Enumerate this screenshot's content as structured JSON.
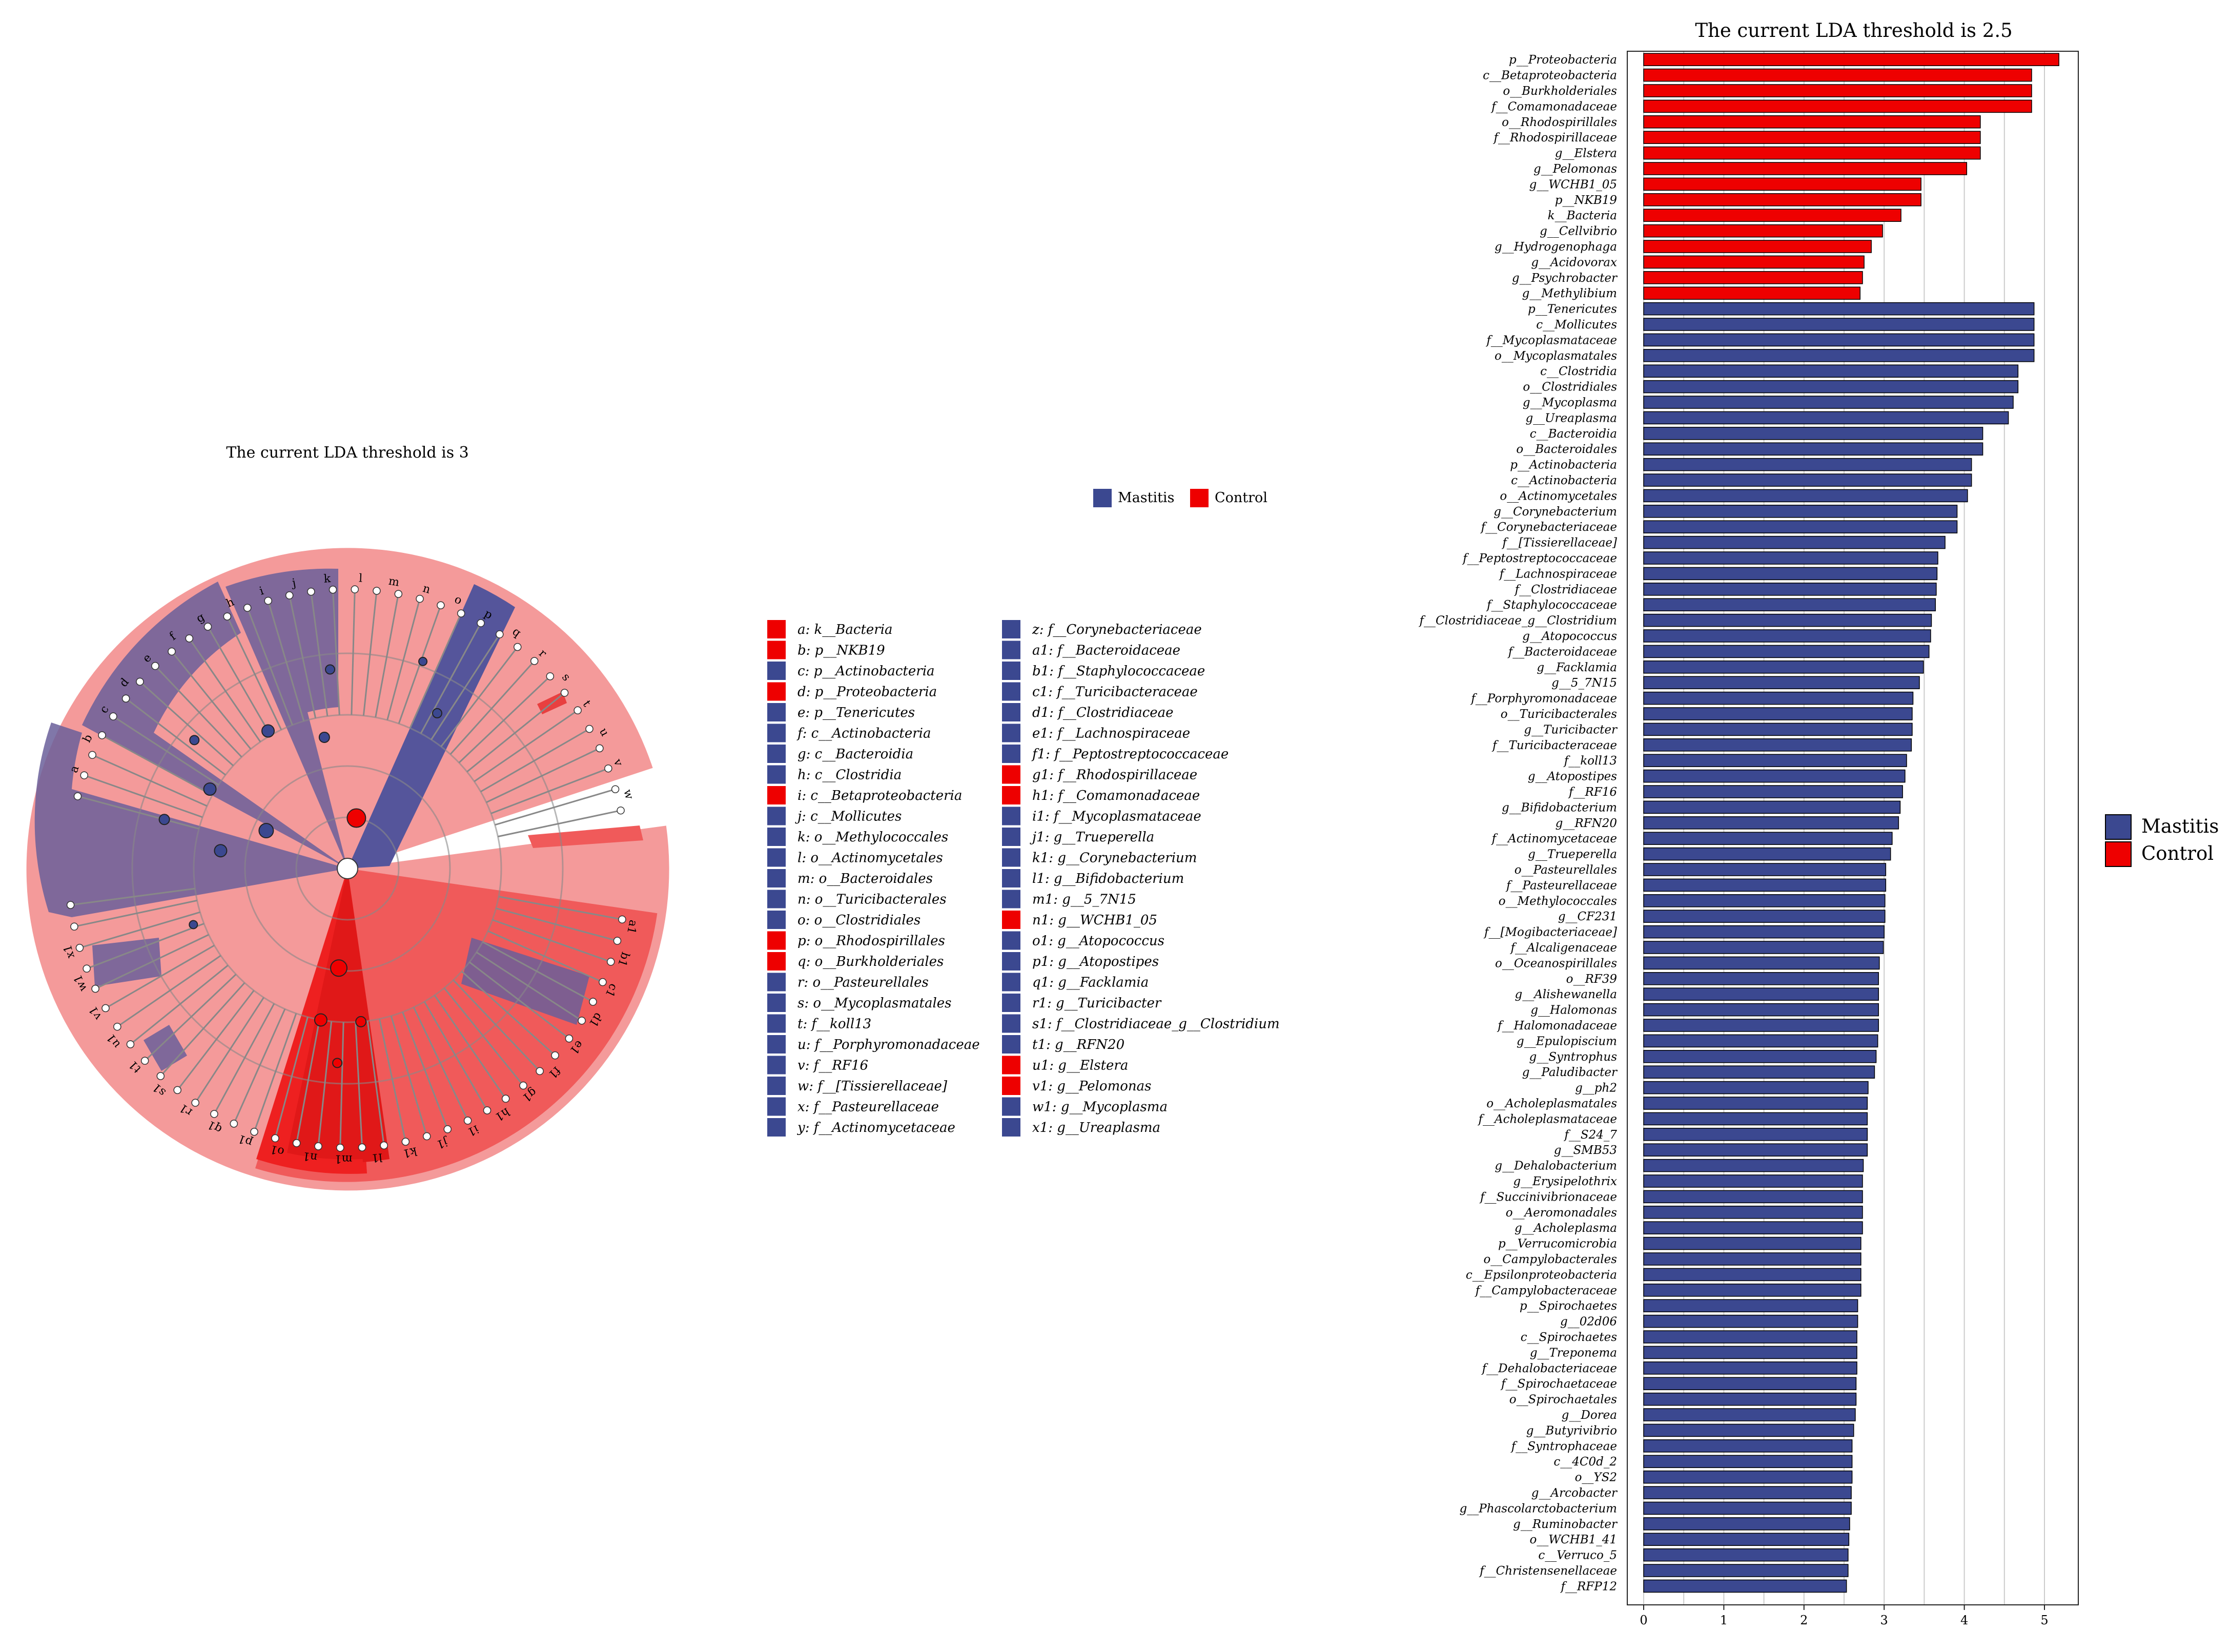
{
  "chart_data": [
    {
      "type": "cladogram",
      "title": "The current LDA threshold is 3",
      "legend": [
        {
          "label": "Mastitis",
          "color": "#3b4890"
        },
        {
          "label": "Control",
          "color": "#ee0000"
        }
      ],
      "node_labels_left": [
        {
          "key": "a",
          "taxon": "k__Bacteria",
          "group": "Control"
        },
        {
          "key": "b",
          "taxon": "p__NKB19",
          "group": "Control"
        },
        {
          "key": "c",
          "taxon": "p__Actinobacteria",
          "group": "Mastitis"
        },
        {
          "key": "d",
          "taxon": "p__Proteobacteria",
          "group": "Control"
        },
        {
          "key": "e",
          "taxon": "p__Tenericutes",
          "group": "Mastitis"
        },
        {
          "key": "f",
          "taxon": "c__Actinobacteria",
          "group": "Mastitis"
        },
        {
          "key": "g",
          "taxon": "c__Bacteroidia",
          "group": "Mastitis"
        },
        {
          "key": "h",
          "taxon": "c__Clostridia",
          "group": "Mastitis"
        },
        {
          "key": "i",
          "taxon": "c__Betaproteobacteria",
          "group": "Control"
        },
        {
          "key": "j",
          "taxon": "c__Mollicutes",
          "group": "Mastitis"
        },
        {
          "key": "k",
          "taxon": "o__Methylococcales",
          "group": "Mastitis"
        },
        {
          "key": "l",
          "taxon": "o__Actinomycetales",
          "group": "Mastitis"
        },
        {
          "key": "m",
          "taxon": "o__Bacteroidales",
          "group": "Mastitis"
        },
        {
          "key": "n",
          "taxon": "o__Turicibacterales",
          "group": "Mastitis"
        },
        {
          "key": "o",
          "taxon": "o__Clostridiales",
          "group": "Mastitis"
        },
        {
          "key": "p",
          "taxon": "o__Rhodospirillales",
          "group": "Control"
        },
        {
          "key": "q",
          "taxon": "o__Burkholderiales",
          "group": "Control"
        },
        {
          "key": "r",
          "taxon": "o__Pasteurellales",
          "group": "Mastitis"
        },
        {
          "key": "s",
          "taxon": "o__Mycoplasmatales",
          "group": "Mastitis"
        },
        {
          "key": "t",
          "taxon": "f__koll13",
          "group": "Mastitis"
        },
        {
          "key": "u",
          "taxon": "f__Porphyromonadaceae",
          "group": "Mastitis"
        },
        {
          "key": "v",
          "taxon": "f__RF16",
          "group": "Mastitis"
        },
        {
          "key": "w",
          "taxon": "f__[Tissierellaceae]",
          "group": "Mastitis"
        },
        {
          "key": "x",
          "taxon": "f__Pasteurellaceae",
          "group": "Mastitis"
        },
        {
          "key": "y",
          "taxon": "f__Actinomycetaceae",
          "group": "Mastitis"
        }
      ],
      "node_labels_right": [
        {
          "key": "z",
          "taxon": "f__Corynebacteriaceae",
          "group": "Mastitis"
        },
        {
          "key": "a1",
          "taxon": "f__Bacteroidaceae",
          "group": "Mastitis"
        },
        {
          "key": "b1",
          "taxon": "f__Staphylococcaceae",
          "group": "Mastitis"
        },
        {
          "key": "c1",
          "taxon": "f__Turicibacteraceae",
          "group": "Mastitis"
        },
        {
          "key": "d1",
          "taxon": "f__Clostridiaceae",
          "group": "Mastitis"
        },
        {
          "key": "e1",
          "taxon": "f__Lachnospiraceae",
          "group": "Mastitis"
        },
        {
          "key": "f1",
          "taxon": "f__Peptostreptococcaceae",
          "group": "Mastitis"
        },
        {
          "key": "g1",
          "taxon": "f__Rhodospirillaceae",
          "group": "Control"
        },
        {
          "key": "h1",
          "taxon": "f__Comamonadaceae",
          "group": "Control"
        },
        {
          "key": "i1",
          "taxon": "f__Mycoplasmataceae",
          "group": "Mastitis"
        },
        {
          "key": "j1",
          "taxon": "g__Trueperella",
          "group": "Mastitis"
        },
        {
          "key": "k1",
          "taxon": "g__Corynebacterium",
          "group": "Mastitis"
        },
        {
          "key": "l1",
          "taxon": "g__Bifidobacterium",
          "group": "Mastitis"
        },
        {
          "key": "m1",
          "taxon": "g__5_7N15",
          "group": "Mastitis"
        },
        {
          "key": "n1",
          "taxon": "g__WCHB1_05",
          "group": "Control"
        },
        {
          "key": "o1",
          "taxon": "g__Atopococcus",
          "group": "Mastitis"
        },
        {
          "key": "p1",
          "taxon": "g__Atopostipes",
          "group": "Mastitis"
        },
        {
          "key": "q1",
          "taxon": "g__Facklamia",
          "group": "Mastitis"
        },
        {
          "key": "r1",
          "taxon": "g__Turicibacter",
          "group": "Mastitis"
        },
        {
          "key": "s1",
          "taxon": "f__Clostridiaceae_g__Clostridium",
          "group": "Mastitis"
        },
        {
          "key": "t1",
          "taxon": "g__RFN20",
          "group": "Mastitis"
        },
        {
          "key": "u1",
          "taxon": "g__Elstera",
          "group": "Control"
        },
        {
          "key": "v1",
          "taxon": "g__Pelomonas",
          "group": "Control"
        },
        {
          "key": "w1",
          "taxon": "g__Mycoplasma",
          "group": "Mastitis"
        },
        {
          "key": "x1",
          "taxon": "g__Ureaplasma",
          "group": "Mastitis"
        }
      ],
      "sector_letters": [
        "a",
        "b",
        "c",
        "d",
        "e",
        "f",
        "g",
        "h",
        "i",
        "j",
        "k",
        "l",
        "m",
        "n",
        "o",
        "p",
        "q",
        "r",
        "s",
        "t",
        "u",
        "v",
        "w",
        "x",
        "y",
        "z",
        "a1",
        "b1",
        "c1",
        "d1",
        "e1",
        "f1",
        "g1",
        "h1",
        "i1",
        "j1",
        "k1",
        "l1",
        "m1",
        "n1",
        "o1",
        "p1",
        "q1",
        "r1",
        "s1",
        "t1",
        "u1",
        "v1",
        "w1",
        "x1"
      ]
    },
    {
      "type": "bar",
      "orientation": "horizontal",
      "title": "The current LDA threshold is 2.5",
      "xlim": [
        0,
        5.4
      ],
      "xticks": [
        0,
        1,
        2,
        3,
        4,
        5
      ],
      "grid": true,
      "legend": [
        {
          "label": "Mastitis",
          "color": "#3b4890"
        },
        {
          "label": "Control",
          "color": "#ee0000"
        }
      ],
      "legend_position": "right",
      "bars": [
        {
          "label": "p__Proteobacteria",
          "value": 5.18,
          "group": "Control"
        },
        {
          "label": "c__Betaproteobacteria",
          "value": 4.84,
          "group": "Control"
        },
        {
          "label": "o__Burkholderiales",
          "value": 4.84,
          "group": "Control"
        },
        {
          "label": "f__Comamonadaceae",
          "value": 4.84,
          "group": "Control"
        },
        {
          "label": "o__Rhodospirillales",
          "value": 4.2,
          "group": "Control"
        },
        {
          "label": "f__Rhodospirillaceae",
          "value": 4.2,
          "group": "Control"
        },
        {
          "label": "g__Elstera",
          "value": 4.2,
          "group": "Control"
        },
        {
          "label": "g__Pelomonas",
          "value": 4.03,
          "group": "Control"
        },
        {
          "label": "g__WCHB1_05",
          "value": 3.46,
          "group": "Control"
        },
        {
          "label": "p__NKB19",
          "value": 3.46,
          "group": "Control"
        },
        {
          "label": "k__Bacteria",
          "value": 3.21,
          "group": "Control"
        },
        {
          "label": "g__Cellvibrio",
          "value": 2.98,
          "group": "Control"
        },
        {
          "label": "g__Hydrogenophaga",
          "value": 2.84,
          "group": "Control"
        },
        {
          "label": "g__Acidovorax",
          "value": 2.75,
          "group": "Control"
        },
        {
          "label": "g__Psychrobacter",
          "value": 2.73,
          "group": "Control"
        },
        {
          "label": "g__Methylibium",
          "value": 2.7,
          "group": "Control"
        },
        {
          "label": "p__Tenericutes",
          "value": 4.87,
          "group": "Mastitis"
        },
        {
          "label": "c__Mollicutes",
          "value": 4.87,
          "group": "Mastitis"
        },
        {
          "label": "f__Mycoplasmataceae",
          "value": 4.87,
          "group": "Mastitis"
        },
        {
          "label": "o__Mycoplasmatales",
          "value": 4.87,
          "group": "Mastitis"
        },
        {
          "label": "c__Clostridia",
          "value": 4.67,
          "group": "Mastitis"
        },
        {
          "label": "o__Clostridiales",
          "value": 4.67,
          "group": "Mastitis"
        },
        {
          "label": "g__Mycoplasma",
          "value": 4.61,
          "group": "Mastitis"
        },
        {
          "label": "g__Ureaplasma",
          "value": 4.55,
          "group": "Mastitis"
        },
        {
          "label": "c__Bacteroidia",
          "value": 4.23,
          "group": "Mastitis"
        },
        {
          "label": "o__Bacteroidales",
          "value": 4.23,
          "group": "Mastitis"
        },
        {
          "label": "p__Actinobacteria",
          "value": 4.09,
          "group": "Mastitis"
        },
        {
          "label": "c__Actinobacteria",
          "value": 4.09,
          "group": "Mastitis"
        },
        {
          "label": "o__Actinomycetales",
          "value": 4.04,
          "group": "Mastitis"
        },
        {
          "label": "g__Corynebacterium",
          "value": 3.91,
          "group": "Mastitis"
        },
        {
          "label": "f__Corynebacteriaceae",
          "value": 3.91,
          "group": "Mastitis"
        },
        {
          "label": "f__[Tissierellaceae]",
          "value": 3.76,
          "group": "Mastitis"
        },
        {
          "label": "f__Peptostreptococcaceae",
          "value": 3.67,
          "group": "Mastitis"
        },
        {
          "label": "f__Lachnospiraceae",
          "value": 3.66,
          "group": "Mastitis"
        },
        {
          "label": "f__Clostridiaceae",
          "value": 3.65,
          "group": "Mastitis"
        },
        {
          "label": "f__Staphylococcaceae",
          "value": 3.64,
          "group": "Mastitis"
        },
        {
          "label": "f__Clostridiaceae_g__Clostridium",
          "value": 3.59,
          "group": "Mastitis"
        },
        {
          "label": "g__Atopococcus",
          "value": 3.58,
          "group": "Mastitis"
        },
        {
          "label": "f__Bacteroidaceae",
          "value": 3.56,
          "group": "Mastitis"
        },
        {
          "label": "g__Facklamia",
          "value": 3.49,
          "group": "Mastitis"
        },
        {
          "label": "g__5_7N15",
          "value": 3.44,
          "group": "Mastitis"
        },
        {
          "label": "f__Porphyromonadaceae",
          "value": 3.36,
          "group": "Mastitis"
        },
        {
          "label": "o__Turicibacterales",
          "value": 3.35,
          "group": "Mastitis"
        },
        {
          "label": "g__Turicibacter",
          "value": 3.35,
          "group": "Mastitis"
        },
        {
          "label": "f__Turicibacteraceae",
          "value": 3.34,
          "group": "Mastitis"
        },
        {
          "label": "f__koll13",
          "value": 3.28,
          "group": "Mastitis"
        },
        {
          "label": "g__Atopostipes",
          "value": 3.26,
          "group": "Mastitis"
        },
        {
          "label": "f__RF16",
          "value": 3.23,
          "group": "Mastitis"
        },
        {
          "label": "g__Bifidobacterium",
          "value": 3.2,
          "group": "Mastitis"
        },
        {
          "label": "g__RFN20",
          "value": 3.18,
          "group": "Mastitis"
        },
        {
          "label": "f__Actinomycetaceae",
          "value": 3.1,
          "group": "Mastitis"
        },
        {
          "label": "g__Trueperella",
          "value": 3.08,
          "group": "Mastitis"
        },
        {
          "label": "o__Pasteurellales",
          "value": 3.02,
          "group": "Mastitis"
        },
        {
          "label": "f__Pasteurellaceae",
          "value": 3.02,
          "group": "Mastitis"
        },
        {
          "label": "o__Methylococcales",
          "value": 3.01,
          "group": "Mastitis"
        },
        {
          "label": "g__CF231",
          "value": 3.01,
          "group": "Mastitis"
        },
        {
          "label": "f__[Mogibacteriaceae]",
          "value": 3.0,
          "group": "Mastitis"
        },
        {
          "label": "f__Alcaligenaceae",
          "value": 2.99,
          "group": "Mastitis"
        },
        {
          "label": "o__Oceanospirillales",
          "value": 2.94,
          "group": "Mastitis"
        },
        {
          "label": "o__RF39",
          "value": 2.93,
          "group": "Mastitis"
        },
        {
          "label": "g__Alishewanella",
          "value": 2.93,
          "group": "Mastitis"
        },
        {
          "label": "g__Halomonas",
          "value": 2.93,
          "group": "Mastitis"
        },
        {
          "label": "f__Halomonadaceae",
          "value": 2.93,
          "group": "Mastitis"
        },
        {
          "label": "g__Epulopiscium",
          "value": 2.92,
          "group": "Mastitis"
        },
        {
          "label": "g__Syntrophus",
          "value": 2.9,
          "group": "Mastitis"
        },
        {
          "label": "g__Paludibacter",
          "value": 2.88,
          "group": "Mastitis"
        },
        {
          "label": "g__ph2",
          "value": 2.8,
          "group": "Mastitis"
        },
        {
          "label": "o__Acholeplasmatales",
          "value": 2.79,
          "group": "Mastitis"
        },
        {
          "label": "f__Acholeplasmataceae",
          "value": 2.79,
          "group": "Mastitis"
        },
        {
          "label": "f__S24_7",
          "value": 2.79,
          "group": "Mastitis"
        },
        {
          "label": "g__SMB53",
          "value": 2.79,
          "group": "Mastitis"
        },
        {
          "label": "g__Dehalobacterium",
          "value": 2.74,
          "group": "Mastitis"
        },
        {
          "label": "g__Erysipelothrix",
          "value": 2.73,
          "group": "Mastitis"
        },
        {
          "label": "f__Succinivibrionaceae",
          "value": 2.73,
          "group": "Mastitis"
        },
        {
          "label": "o__Aeromonadales",
          "value": 2.73,
          "group": "Mastitis"
        },
        {
          "label": "g__Acholeplasma",
          "value": 2.73,
          "group": "Mastitis"
        },
        {
          "label": "p__Verrucomicrobia",
          "value": 2.71,
          "group": "Mastitis"
        },
        {
          "label": "o__Campylobacterales",
          "value": 2.71,
          "group": "Mastitis"
        },
        {
          "label": "c__Epsilonproteobacteria",
          "value": 2.71,
          "group": "Mastitis"
        },
        {
          "label": "f__Campylobacteraceae",
          "value": 2.71,
          "group": "Mastitis"
        },
        {
          "label": "p__Spirochaetes",
          "value": 2.67,
          "group": "Mastitis"
        },
        {
          "label": "g__02d06",
          "value": 2.67,
          "group": "Mastitis"
        },
        {
          "label": "c__Spirochaetes",
          "value": 2.66,
          "group": "Mastitis"
        },
        {
          "label": "g__Treponema",
          "value": 2.66,
          "group": "Mastitis"
        },
        {
          "label": "f__Dehalobacteriaceae",
          "value": 2.66,
          "group": "Mastitis"
        },
        {
          "label": "f__Spirochaetaceae",
          "value": 2.65,
          "group": "Mastitis"
        },
        {
          "label": "o__Spirochaetales",
          "value": 2.65,
          "group": "Mastitis"
        },
        {
          "label": "g__Dorea",
          "value": 2.64,
          "group": "Mastitis"
        },
        {
          "label": "g__Butyrivibrio",
          "value": 2.62,
          "group": "Mastitis"
        },
        {
          "label": "f__Syntrophaceae",
          "value": 2.6,
          "group": "Mastitis"
        },
        {
          "label": "c__4C0d_2",
          "value": 2.6,
          "group": "Mastitis"
        },
        {
          "label": "o__YS2",
          "value": 2.6,
          "group": "Mastitis"
        },
        {
          "label": "g__Arcobacter",
          "value": 2.59,
          "group": "Mastitis"
        },
        {
          "label": "g__Phascolarctobacterium",
          "value": 2.59,
          "group": "Mastitis"
        },
        {
          "label": "g__Ruminobacter",
          "value": 2.57,
          "group": "Mastitis"
        },
        {
          "label": "o__WCHB1_41",
          "value": 2.56,
          "group": "Mastitis"
        },
        {
          "label": "c__Verruco_5",
          "value": 2.55,
          "group": "Mastitis"
        },
        {
          "label": "f__Christensenellaceae",
          "value": 2.55,
          "group": "Mastitis"
        },
        {
          "label": "f__RFP12",
          "value": 2.53,
          "group": "Mastitis"
        }
      ]
    }
  ]
}
